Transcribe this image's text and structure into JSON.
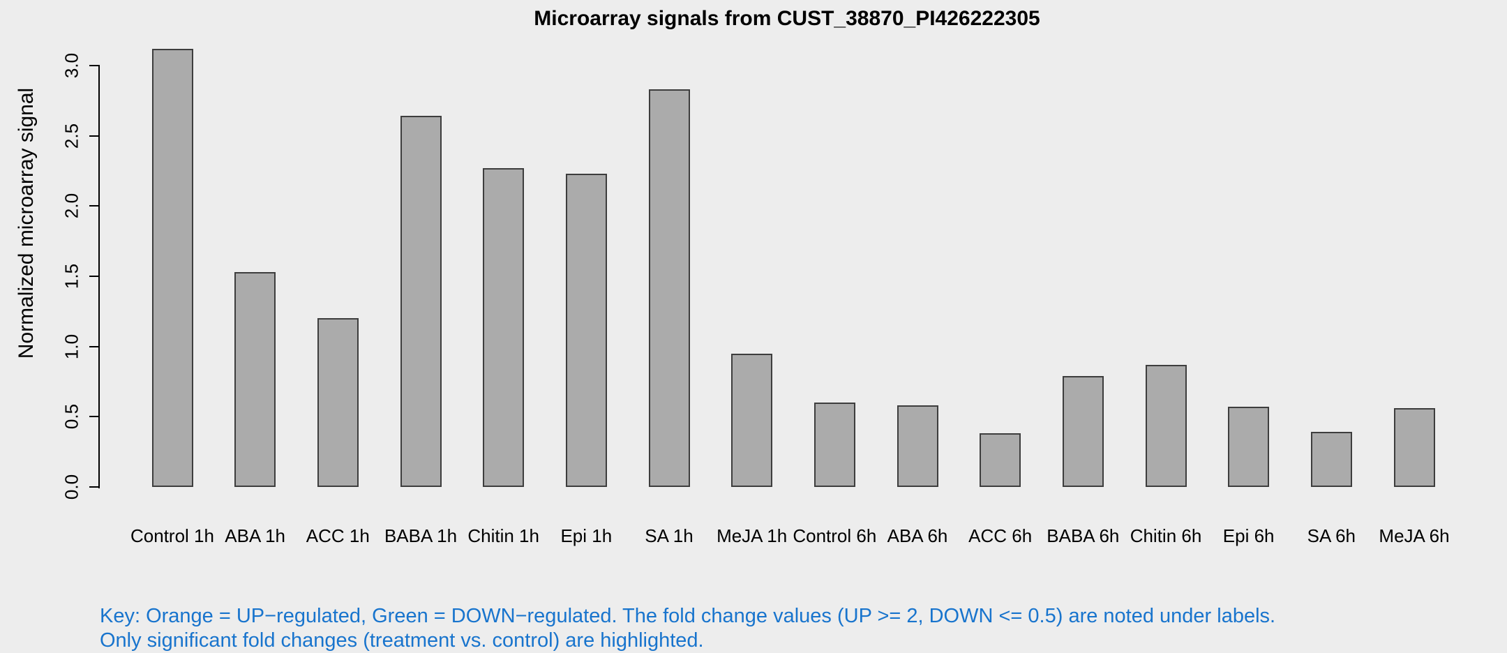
{
  "figure": {
    "title": "Microarray signals from CUST_38870_PI426222305",
    "y_axis": {
      "label": "Normalized microarray signal"
    },
    "key": {
      "line1": "Key: Orange = UP−regulated, Green = DOWN−regulated. The fold change values (UP >= 2, DOWN <= 0.5) are noted under labels.",
      "line2": "Only significant fold changes (treatment vs. control) are highlighted."
    }
  },
  "colors": {
    "background": "#EDEDED",
    "bar_fill": "#ABABAB",
    "bar_border": "#3D3D3D",
    "axis": "#000000",
    "key_text": "#1874CD"
  },
  "chart_data": {
    "type": "bar",
    "title": "Microarray signals from CUST_38870_PI426222305",
    "xlabel": "",
    "ylabel": "Normalized microarray signal",
    "ylim": [
      0,
      3.0
    ],
    "yticks": [
      0.0,
      0.5,
      1.0,
      1.5,
      2.0,
      2.5,
      3.0
    ],
    "grid": false,
    "legend_position": "none",
    "categories": [
      "Control 1h",
      "ABA 1h",
      "ACC 1h",
      "BABA 1h",
      "Chitin 1h",
      "Epi 1h",
      "SA 1h",
      "MeJA 1h",
      "Control 6h",
      "ABA 6h",
      "ACC 6h",
      "BABA 6h",
      "Chitin 6h",
      "Epi 6h",
      "SA 6h",
      "MeJA 6h"
    ],
    "values": [
      3.12,
      1.53,
      1.2,
      2.64,
      2.27,
      2.23,
      2.83,
      0.95,
      0.6,
      0.58,
      0.38,
      0.79,
      0.87,
      0.57,
      0.39,
      0.56
    ],
    "annotations": []
  }
}
